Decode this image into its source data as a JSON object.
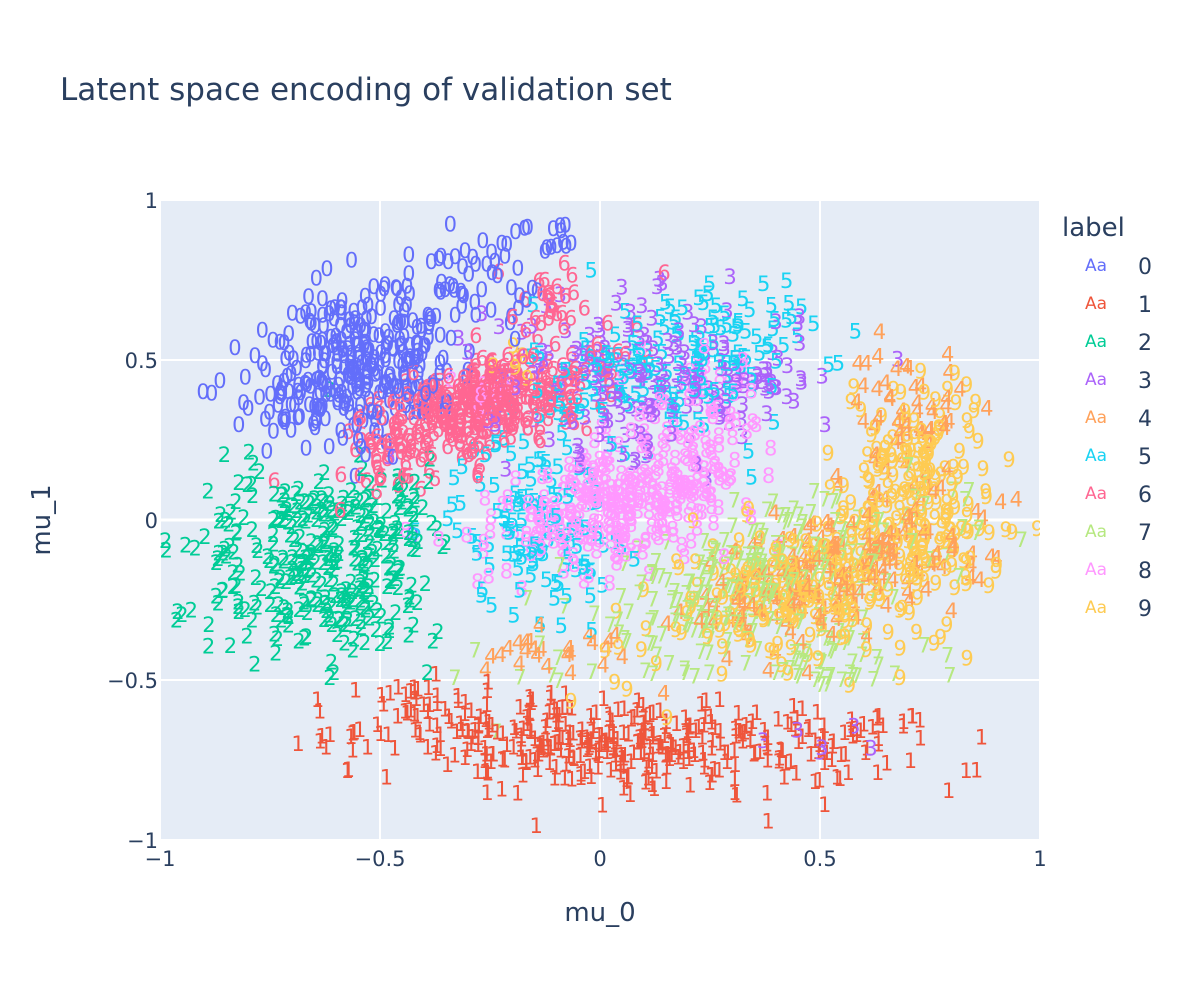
{
  "chart_data": {
    "type": "scatter",
    "title": "Latent space encoding of validation set",
    "xlabel": "mu_0",
    "ylabel": "mu_1",
    "xlim": [
      -1,
      1
    ],
    "ylim": [
      -1,
      1
    ],
    "x_ticks": [
      -1,
      -0.5,
      0,
      0.5,
      1
    ],
    "y_ticks": [
      -1,
      -0.5,
      0,
      0.5,
      1
    ],
    "x_tick_labels": [
      "−1",
      "−0.5",
      "0",
      "0.5",
      "1"
    ],
    "y_tick_labels": [
      "−1",
      "−0.5",
      "0",
      "0.5",
      "1"
    ],
    "grid": true,
    "marker_mode": "text",
    "legend": {
      "title": "label",
      "placement": "right",
      "swatch_text": "Aa"
    },
    "series": [
      {
        "name": "0",
        "color": "#636efa",
        "clusters": [
          {
            "center": [
              -0.55,
              0.48
            ],
            "spread": [
              0.13,
              0.12
            ],
            "angle": 35,
            "count": 340
          },
          {
            "center": [
              -0.3,
              0.75
            ],
            "spread": [
              0.08,
              0.07
            ],
            "angle": 10,
            "count": 50
          },
          {
            "center": [
              -0.12,
              0.88
            ],
            "spread": [
              0.06,
              0.03
            ],
            "angle": 0,
            "count": 12
          }
        ]
      },
      {
        "name": "1",
        "color": "#ef553b",
        "clusters": [
          {
            "center": [
              0.02,
              -0.7
            ],
            "spread": [
              0.28,
              0.07
            ],
            "angle": -5,
            "count": 380
          },
          {
            "center": [
              -0.42,
              -0.58
            ],
            "spread": [
              0.05,
              0.04
            ],
            "angle": 0,
            "count": 20
          },
          {
            "center": [
              0.55,
              -0.68
            ],
            "spread": [
              0.08,
              0.05
            ],
            "angle": 0,
            "count": 30
          },
          {
            "center": [
              0.71,
              -0.62
            ],
            "spread": [
              0.02,
              0.03
            ],
            "angle": 0,
            "count": 4
          }
        ]
      },
      {
        "name": "2",
        "color": "#00cc96",
        "clusters": [
          {
            "center": [
              -0.64,
              -0.15
            ],
            "spread": [
              0.13,
              0.15
            ],
            "angle": 20,
            "count": 300
          },
          {
            "center": [
              -0.5,
              0.05
            ],
            "spread": [
              0.08,
              0.07
            ],
            "angle": 0,
            "count": 60
          },
          {
            "center": [
              -0.8,
              0.18
            ],
            "spread": [
              0.03,
              0.03
            ],
            "angle": 0,
            "count": 5
          }
        ]
      },
      {
        "name": "3",
        "color": "#ab63fa",
        "clusters": [
          {
            "center": [
              0.1,
              0.45
            ],
            "spread": [
              0.18,
              0.12
            ],
            "angle": 0,
            "count": 200
          },
          {
            "center": [
              0.35,
              0.4
            ],
            "spread": [
              0.06,
              0.06
            ],
            "angle": 0,
            "count": 20
          },
          {
            "center": [
              0.5,
              -0.7
            ],
            "spread": [
              0.1,
              0.03
            ],
            "angle": 0,
            "count": 6
          }
        ]
      },
      {
        "name": "4",
        "color": "#ffa15a",
        "clusters": [
          {
            "center": [
              0.55,
              -0.15
            ],
            "spread": [
              0.18,
              0.1
            ],
            "angle": 25,
            "count": 200
          },
          {
            "center": [
              0.7,
              0.35
            ],
            "spread": [
              0.07,
              0.1
            ],
            "angle": 0,
            "count": 50
          },
          {
            "center": [
              -0.12,
              -0.4
            ],
            "spread": [
              0.08,
              0.04
            ],
            "angle": 0,
            "count": 25
          }
        ]
      },
      {
        "name": "5",
        "color": "#19d3f3",
        "clusters": [
          {
            "center": [
              -0.15,
              0.0
            ],
            "spread": [
              0.09,
              0.14
            ],
            "angle": 0,
            "count": 120
          },
          {
            "center": [
              0.15,
              0.45
            ],
            "spread": [
              0.15,
              0.12
            ],
            "angle": 0,
            "count": 150
          },
          {
            "center": [
              0.3,
              0.65
            ],
            "spread": [
              0.08,
              0.05
            ],
            "angle": 0,
            "count": 30
          }
        ]
      },
      {
        "name": "6",
        "color": "#ff6692",
        "clusters": [
          {
            "center": [
              -0.28,
              0.35
            ],
            "spread": [
              0.16,
              0.07
            ],
            "angle": 30,
            "count": 380
          },
          {
            "center": [
              -0.1,
              0.68
            ],
            "spread": [
              0.06,
              0.06
            ],
            "angle": 0,
            "count": 25
          }
        ]
      },
      {
        "name": "7",
        "color": "#b6e880",
        "clusters": [
          {
            "center": [
              0.35,
              -0.2
            ],
            "spread": [
              0.24,
              0.1
            ],
            "angle": 25,
            "count": 280
          },
          {
            "center": [
              0.55,
              -0.45
            ],
            "spread": [
              0.1,
              0.05
            ],
            "angle": 0,
            "count": 40
          }
        ]
      },
      {
        "name": "8",
        "color": "#ff97ff",
        "clusters": [
          {
            "center": [
              0.05,
              0.05
            ],
            "spread": [
              0.16,
              0.08
            ],
            "angle": 25,
            "count": 320
          },
          {
            "center": [
              0.25,
              0.35
            ],
            "spread": [
              0.08,
              0.08
            ],
            "angle": 0,
            "count": 50
          },
          {
            "center": [
              -0.25,
              0.4
            ],
            "spread": [
              0.03,
              0.03
            ],
            "angle": 0,
            "count": 8
          }
        ]
      },
      {
        "name": "9",
        "color": "#fecb52",
        "clusters": [
          {
            "center": [
              0.5,
              -0.2
            ],
            "spread": [
              0.2,
              0.1
            ],
            "angle": 25,
            "count": 260
          },
          {
            "center": [
              0.72,
              0.15
            ],
            "spread": [
              0.08,
              0.16
            ],
            "angle": 0,
            "count": 150
          },
          {
            "center": [
              -0.2,
              0.5
            ],
            "spread": [
              0.03,
              0.03
            ],
            "angle": 0,
            "count": 6
          }
        ]
      }
    ]
  }
}
